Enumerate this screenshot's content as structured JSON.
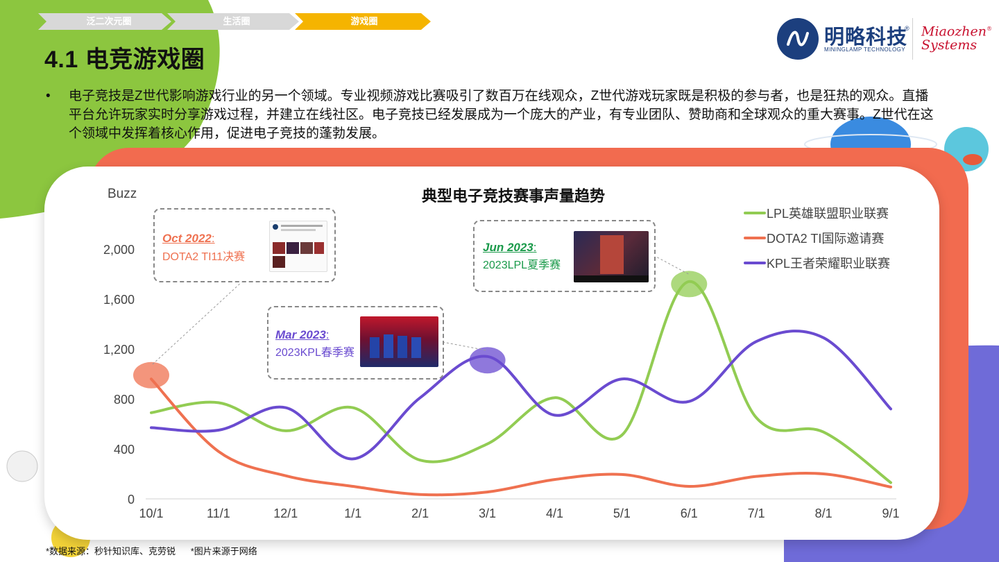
{
  "breadcrumb": {
    "items": [
      {
        "label": "泛二次元圈"
      },
      {
        "label": "生活圈"
      },
      {
        "label": "游戏圈"
      }
    ],
    "colors": {
      "inactive": "#d8d8d8",
      "active": "#f5b400"
    }
  },
  "page_title": "4.1 电竞游戏圈",
  "logo": {
    "name_cn": "明略科技",
    "registered": "®",
    "name_en": "MININGLAMP TECHNOLOGY",
    "brand_line1": "Miaozhen",
    "brand_line2": "Systems",
    "brand_registered": "®"
  },
  "bullet": {
    "marker": "•",
    "text": "电子竞技是Z世代影响游戏行业的另一个领域。专业视频游戏比赛吸引了数百万在线观众，Z世代游戏玩家既是积极的参与者，也是狂热的观众。直播平台允许玩家实时分享游戏过程，并建立在线社区。电子竞技已经发展成为一个庞大的产业，有专业团队、赞助商和全球观众的重大赛事。Z世代在这个领域中发挥着核心作用，促进电子竞技的蓬勃发展。"
  },
  "chart_data": {
    "type": "line",
    "title": "典型电子竞技赛事声量趋势",
    "ylabel": "Buzz",
    "xlabel": "",
    "categories": [
      "10/1",
      "11/1",
      "12/1",
      "1/1",
      "2/1",
      "3/1",
      "4/1",
      "5/1",
      "6/1",
      "7/1",
      "8/1",
      "9/1"
    ],
    "ylim": [
      0,
      2000
    ],
    "yticks": [
      0,
      400,
      800,
      1200,
      1600,
      2000
    ],
    "ytick_labels": [
      "0",
      "400",
      "800",
      "1,200",
      "1,600",
      "2,000"
    ],
    "grid": false,
    "legend_position": "top-right",
    "series": [
      {
        "name": "LPL英雄联盟职业联赛",
        "color": "#92cc53",
        "points": [
          [
            0,
            690
          ],
          [
            1,
            770
          ],
          [
            2,
            545
          ],
          [
            3,
            730
          ],
          [
            4,
            310
          ],
          [
            5,
            440
          ],
          [
            6,
            810
          ],
          [
            7,
            510
          ],
          [
            8,
            1740
          ],
          [
            9,
            650
          ],
          [
            10,
            535
          ],
          [
            11,
            130
          ]
        ]
      },
      {
        "name": "DOTA2 TI国际邀请赛",
        "color": "#ef7150",
        "points": [
          [
            0,
            960
          ],
          [
            1,
            380
          ],
          [
            2,
            185
          ],
          [
            3,
            100
          ],
          [
            4,
            35
          ],
          [
            5,
            55
          ],
          [
            6,
            155
          ],
          [
            7,
            195
          ],
          [
            8,
            100
          ],
          [
            9,
            180
          ],
          [
            10,
            200
          ],
          [
            11,
            95
          ]
        ]
      },
      {
        "name": "KPL王者荣耀职业联赛",
        "color": "#6a4bd0",
        "points": [
          [
            0,
            570
          ],
          [
            1,
            550
          ],
          [
            2,
            730
          ],
          [
            3,
            320
          ],
          [
            4,
            810
          ],
          [
            5,
            1140
          ],
          [
            6,
            670
          ],
          [
            7,
            960
          ],
          [
            8,
            780
          ],
          [
            9,
            1260
          ],
          [
            10,
            1290
          ],
          [
            11,
            720
          ]
        ]
      }
    ],
    "highlights": [
      {
        "series": 1,
        "x": 0,
        "y": 990,
        "color": "#ef7150"
      },
      {
        "series": 2,
        "x": 5,
        "y": 1110,
        "color": "#6a4bd0"
      },
      {
        "series": 0,
        "x": 8,
        "y": 1720,
        "color": "#92cc53"
      }
    ],
    "annotations": [
      {
        "date": "Oct 2022",
        "colon": ":",
        "event": "DOTA2 TI11决赛",
        "color": "#ef7150"
      },
      {
        "date": "Mar 2023",
        "colon": ":",
        "event": "2023KPL春季赛",
        "color": "#6a4bd0"
      },
      {
        "date": "Jun 2023",
        "colon": ":",
        "event": "2023LPL夏季赛",
        "color": "#1a9a4a"
      }
    ]
  },
  "footnote": {
    "source": "*数据来源：秒针知识库、克劳锐",
    "image_note": "*图片来源于网络"
  }
}
